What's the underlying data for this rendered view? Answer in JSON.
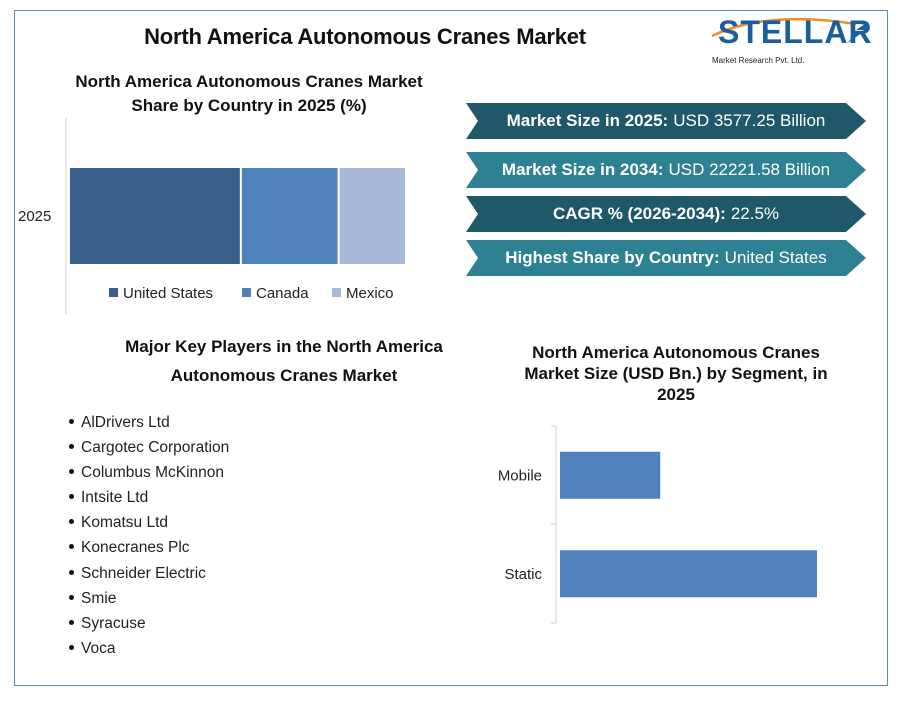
{
  "title": "North America Autonomous Cranes Market",
  "logo": {
    "name": "STELLAR",
    "tagline": "Market Research Pvt. Ltd."
  },
  "share_chart_title": "North America Autonomous Cranes Market Share by Country in 2025 (%)",
  "segment_chart_title": "North America Autonomous Cranes Market Size (USD Bn.) by Segment, in 2025",
  "players_title": "Major Key Players in the North America Autonomous Cranes Market",
  "banners": [
    {
      "label": "Market Size in 2025:",
      "value": "USD 3577.25 Billion"
    },
    {
      "label": "Market Size in 2034:",
      "value": "USD 22221.58 Billion"
    },
    {
      "label": "CAGR % (2026-2034):",
      "value": "22.5%"
    },
    {
      "label": "Highest Share by Country:",
      "value": "United States"
    }
  ],
  "players": [
    "AlDrivers Ltd",
    "Cargotec Corporation",
    "Columbus McKinnon",
    "Intsite Ltd",
    "Komatsu Ltd",
    "Konecranes Plc",
    "Schneider Electric",
    "Smie",
    "Syracuse",
    "Voca"
  ],
  "chart_data": [
    {
      "type": "bar",
      "orientation": "horizontal-stacked-100",
      "categories": [
        "2025"
      ],
      "series": [
        {
          "name": "United States",
          "values": [
            51
          ],
          "color": "#3a5f8c"
        },
        {
          "name": "Canada",
          "values": [
            29
          ],
          "color": "#4f81bd"
        },
        {
          "name": "Mexico",
          "values": [
            20
          ],
          "color": "#a7b8d8"
        }
      ],
      "legend": "bottom",
      "grid": false
    },
    {
      "type": "bar",
      "orientation": "horizontal",
      "categories": [
        "Mobile",
        "Static"
      ],
      "values": [
        39,
        100
      ],
      "color": "#4f81bd",
      "grid": false
    }
  ]
}
